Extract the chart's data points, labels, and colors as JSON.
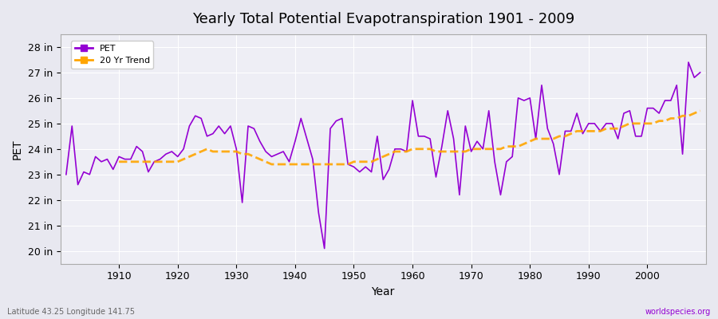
{
  "title": "Yearly Total Potential Evapotranspiration 1901 - 2009",
  "xlabel": "Year",
  "ylabel": "PET",
  "bottom_left_label": "Latitude 43.25 Longitude 141.75",
  "bottom_right_label": "worldspecies.org",
  "pet_color": "#9400D3",
  "trend_color": "#FFA500",
  "background_color": "#E8E8F0",
  "plot_bg_color": "#EEEEF5",
  "ylim": [
    20,
    28.5
  ],
  "ytick_labels": [
    "20 in",
    "21 in",
    "22 in",
    "23 in",
    "24 in",
    "25 in",
    "26 in",
    "27 in",
    "28 in"
  ],
  "ytick_values": [
    20,
    21,
    22,
    23,
    24,
    25,
    26,
    27,
    28
  ],
  "years": [
    1901,
    1902,
    1903,
    1904,
    1905,
    1906,
    1907,
    1908,
    1909,
    1910,
    1911,
    1912,
    1913,
    1914,
    1915,
    1916,
    1917,
    1918,
    1919,
    1920,
    1921,
    1922,
    1923,
    1924,
    1925,
    1926,
    1927,
    1928,
    1929,
    1930,
    1931,
    1932,
    1933,
    1934,
    1935,
    1936,
    1937,
    1938,
    1939,
    1940,
    1941,
    1942,
    1943,
    1944,
    1945,
    1946,
    1947,
    1948,
    1949,
    1950,
    1951,
    1952,
    1953,
    1954,
    1955,
    1956,
    1957,
    1958,
    1959,
    1960,
    1961,
    1962,
    1963,
    1964,
    1965,
    1966,
    1967,
    1968,
    1969,
    1970,
    1971,
    1972,
    1973,
    1974,
    1975,
    1976,
    1977,
    1978,
    1979,
    1980,
    1981,
    1982,
    1983,
    1984,
    1985,
    1986,
    1987,
    1988,
    1989,
    1990,
    1991,
    1992,
    1993,
    1994,
    1995,
    1996,
    1997,
    1998,
    1999,
    2000,
    2001,
    2002,
    2003,
    2004,
    2005,
    2006,
    2007,
    2008,
    2009
  ],
  "pet_values": [
    23.0,
    24.9,
    22.6,
    23.1,
    23.0,
    23.7,
    23.5,
    23.6,
    23.2,
    23.7,
    23.6,
    23.6,
    24.1,
    23.9,
    23.1,
    23.5,
    23.6,
    23.8,
    23.9,
    23.7,
    24.0,
    24.9,
    25.3,
    25.2,
    24.5,
    24.6,
    24.9,
    24.6,
    24.9,
    24.0,
    21.9,
    24.9,
    24.8,
    24.3,
    23.9,
    23.7,
    23.8,
    23.9,
    23.5,
    24.3,
    25.2,
    24.4,
    23.6,
    21.5,
    20.1,
    24.8,
    25.1,
    25.2,
    23.4,
    23.3,
    23.1,
    23.3,
    23.1,
    24.5,
    22.8,
    23.2,
    24.0,
    24.0,
    23.9,
    25.9,
    24.5,
    24.5,
    24.4,
    22.9,
    24.1,
    25.5,
    24.4,
    22.2,
    24.9,
    23.9,
    24.3,
    24.0,
    25.5,
    23.5,
    22.2,
    23.5,
    23.7,
    26.0,
    25.9,
    26.0,
    24.4,
    26.5,
    24.8,
    24.2,
    23.0,
    24.7,
    24.7,
    25.4,
    24.6,
    25.0,
    25.0,
    24.7,
    25.0,
    25.0,
    24.4,
    25.4,
    25.5,
    24.5,
    24.5,
    25.6,
    25.6,
    25.4,
    25.9,
    25.9,
    26.5,
    23.8,
    27.4,
    26.8,
    27.0
  ],
  "trend_years": [
    1910,
    1911,
    1912,
    1913,
    1914,
    1915,
    1916,
    1917,
    1918,
    1919,
    1920,
    1921,
    1922,
    1923,
    1924,
    1925,
    1926,
    1927,
    1928,
    1929,
    1930,
    1931,
    1932,
    1933,
    1934,
    1935,
    1936,
    1937,
    1938,
    1939,
    1940,
    1941,
    1942,
    1943,
    1944,
    1945,
    1946,
    1947,
    1948,
    1949,
    1950,
    1951,
    1952,
    1953,
    1954,
    1955,
    1956,
    1957,
    1958,
    1959,
    1960,
    1961,
    1962,
    1963,
    1964,
    1965,
    1966,
    1967,
    1968,
    1969,
    1970,
    1971,
    1972,
    1973,
    1974,
    1975,
    1976,
    1977,
    1978,
    1979,
    1980,
    1981,
    1982,
    1983,
    1984,
    1985,
    1986,
    1987,
    1988,
    1989,
    1990,
    1991,
    1992,
    1993,
    1994,
    1995,
    1996,
    1997,
    1998,
    1999,
    2000,
    2001,
    2002,
    2003,
    2004,
    2005,
    2006,
    2007,
    2008,
    2009
  ],
  "trend_values": [
    23.5,
    23.5,
    23.5,
    23.5,
    23.5,
    23.5,
    23.5,
    23.5,
    23.5,
    23.5,
    23.5,
    23.6,
    23.7,
    23.8,
    23.9,
    24.0,
    23.9,
    23.9,
    23.9,
    23.9,
    23.9,
    23.8,
    23.8,
    23.7,
    23.6,
    23.5,
    23.4,
    23.4,
    23.4,
    23.4,
    23.4,
    23.4,
    23.4,
    23.4,
    23.4,
    23.4,
    23.4,
    23.4,
    23.4,
    23.4,
    23.5,
    23.5,
    23.5,
    23.5,
    23.6,
    23.7,
    23.8,
    23.9,
    23.9,
    23.9,
    24.0,
    24.0,
    24.0,
    24.0,
    23.9,
    23.9,
    23.9,
    23.9,
    23.9,
    23.9,
    24.0,
    24.0,
    24.0,
    24.0,
    24.0,
    24.0,
    24.1,
    24.1,
    24.1,
    24.2,
    24.3,
    24.4,
    24.4,
    24.4,
    24.4,
    24.5,
    24.5,
    24.6,
    24.7,
    24.7,
    24.7,
    24.7,
    24.7,
    24.8,
    24.8,
    24.8,
    24.9,
    25.0,
    25.0,
    25.0,
    25.0,
    25.0,
    25.1,
    25.1,
    25.2,
    25.2,
    25.3,
    25.3,
    25.4,
    25.5
  ]
}
